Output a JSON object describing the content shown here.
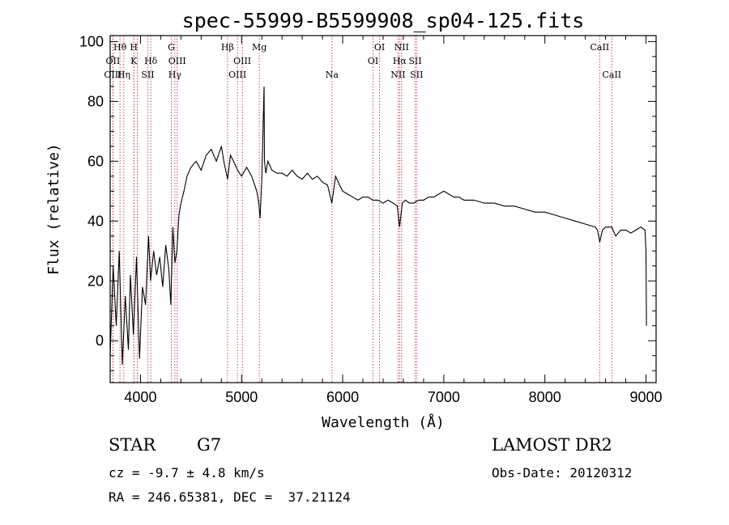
{
  "colors": {
    "spectrum": "#000000",
    "line_markers": "#b22222",
    "axes": "#000000",
    "background": "#ffffff"
  },
  "info": {
    "object_class": "STAR",
    "subclass": "G7",
    "survey": "LAMOST DR2",
    "redshift": "cz = -9.7 ± 4.8 km/s",
    "obs_date": "Obs-Date: 20120312",
    "coords": "RA = 246.65381, DEC =  37.21124"
  },
  "chart_data": {
    "type": "line",
    "title": "spec-55999-B5599908_sp04-125.fits",
    "xlabel": "Wavelength (Å)",
    "ylabel": "Flux (relative)",
    "xlim": [
      3700,
      9100
    ],
    "ylim": [
      -14,
      102
    ],
    "xticks": [
      4000,
      5000,
      6000,
      7000,
      8000,
      9000
    ],
    "yticks": [
      0,
      20,
      40,
      60,
      80,
      100
    ],
    "grid": false,
    "legend": "none",
    "series": [
      {
        "x": [
          3700,
          3730,
          3760,
          3790,
          3820,
          3850,
          3880,
          3900,
          3930,
          3960,
          3990,
          4020,
          4050,
          4080,
          4100,
          4130,
          4160,
          4190,
          4220,
          4250,
          4280,
          4300,
          4320,
          4340,
          4360,
          4380,
          4400,
          4430,
          4460,
          4500,
          4550,
          4600,
          4650,
          4700,
          4750,
          4800,
          4830,
          4862,
          4890,
          4920,
          4960,
          5000,
          5050,
          5100,
          5150,
          5170,
          5183,
          5200,
          5222,
          5226,
          5240,
          5260,
          5300,
          5350,
          5400,
          5450,
          5500,
          5550,
          5600,
          5650,
          5700,
          5750,
          5800,
          5850,
          5893,
          5930,
          5970,
          6000,
          6050,
          6100,
          6150,
          6200,
          6250,
          6300,
          6350,
          6400,
          6450,
          6500,
          6540,
          6563,
          6590,
          6620,
          6660,
          6700,
          6750,
          6800,
          6850,
          6900,
          6950,
          7000,
          7050,
          7100,
          7150,
          7200,
          7300,
          7400,
          7500,
          7600,
          7700,
          7800,
          7900,
          8000,
          8100,
          8200,
          8300,
          8400,
          8498,
          8520,
          8542,
          8570,
          8600,
          8662,
          8700,
          8750,
          8800,
          8850,
          8900,
          8950,
          8990,
          9000,
          9005
        ],
        "y": [
          -5,
          25,
          5,
          30,
          -8,
          15,
          -3,
          22,
          2,
          28,
          -6,
          18,
          12,
          35,
          20,
          30,
          22,
          28,
          18,
          32,
          24,
          12,
          38,
          26,
          30,
          42,
          46,
          50,
          55,
          58,
          60,
          57,
          62,
          64,
          60,
          65,
          59,
          54,
          62,
          60,
          57,
          55,
          58,
          55,
          50,
          46,
          41,
          54,
          85,
          60,
          56,
          60,
          57,
          56,
          56,
          55,
          57,
          55,
          54,
          56,
          54,
          55,
          53,
          52,
          46,
          55,
          52,
          50,
          49,
          48,
          47,
          48,
          48,
          47,
          47,
          46,
          47,
          46,
          45,
          38,
          46,
          47,
          46,
          46,
          47,
          47,
          48,
          48,
          49,
          50,
          49,
          48,
          48,
          47,
          47,
          46,
          46,
          45,
          45,
          44,
          43,
          43,
          42,
          41,
          40,
          39,
          38,
          37,
          33,
          37,
          38,
          38,
          35,
          37,
          37,
          36,
          37,
          38,
          37,
          30,
          5
        ]
      }
    ],
    "line_markers": [
      {
        "wave": 3797,
        "labels": [
          "Hθ"
        ],
        "row": 1
      },
      {
        "wave": 3727,
        "labels": [
          "OII"
        ],
        "row": 2
      },
      {
        "wave": 3727,
        "labels": [
          "OIII"
        ],
        "row": 3
      },
      {
        "wave": 3835,
        "labels": [
          "Hη"
        ],
        "row": 3
      },
      {
        "wave": 3934,
        "labels": [
          "H"
        ],
        "row": 1
      },
      {
        "wave": 3934,
        "labels": [
          "K"
        ],
        "row": 2
      },
      {
        "wave": 3969,
        "labels": [],
        "row": 0
      },
      {
        "wave": 4072,
        "labels": [
          "SII"
        ],
        "row": 3
      },
      {
        "wave": 4102,
        "labels": [
          "Hδ"
        ],
        "row": 2
      },
      {
        "wave": 4305,
        "labels": [
          "G"
        ],
        "row": 1
      },
      {
        "wave": 4340,
        "labels": [
          "Hγ"
        ],
        "row": 3
      },
      {
        "wave": 4363,
        "labels": [
          "OIII"
        ],
        "row": 2
      },
      {
        "wave": 4861,
        "labels": [
          "Hβ"
        ],
        "row": 1
      },
      {
        "wave": 4959,
        "labels": [
          "OIII"
        ],
        "row": 3
      },
      {
        "wave": 5007,
        "labels": [
          "OIII"
        ],
        "row": 2
      },
      {
        "wave": 5175,
        "labels": [
          "Mg"
        ],
        "row": 1
      },
      {
        "wave": 5894,
        "labels": [
          "Na"
        ],
        "row": 3
      },
      {
        "wave": 6300,
        "labels": [
          "OI"
        ],
        "row": 2
      },
      {
        "wave": 6364,
        "labels": [
          "OI"
        ],
        "row": 1
      },
      {
        "wave": 6548,
        "labels": [
          "NII"
        ],
        "row": 3
      },
      {
        "wave": 6563,
        "labels": [
          "Hα"
        ],
        "row": 2
      },
      {
        "wave": 6583,
        "labels": [
          "NII"
        ],
        "row": 1
      },
      {
        "wave": 6717,
        "labels": [
          "SII"
        ],
        "row": 2
      },
      {
        "wave": 6731,
        "labels": [
          "SII"
        ],
        "row": 3
      },
      {
        "wave": 8542,
        "labels": [
          "CaII"
        ],
        "row": 1
      },
      {
        "wave": 8662,
        "labels": [
          "CaII"
        ],
        "row": 3
      }
    ]
  }
}
